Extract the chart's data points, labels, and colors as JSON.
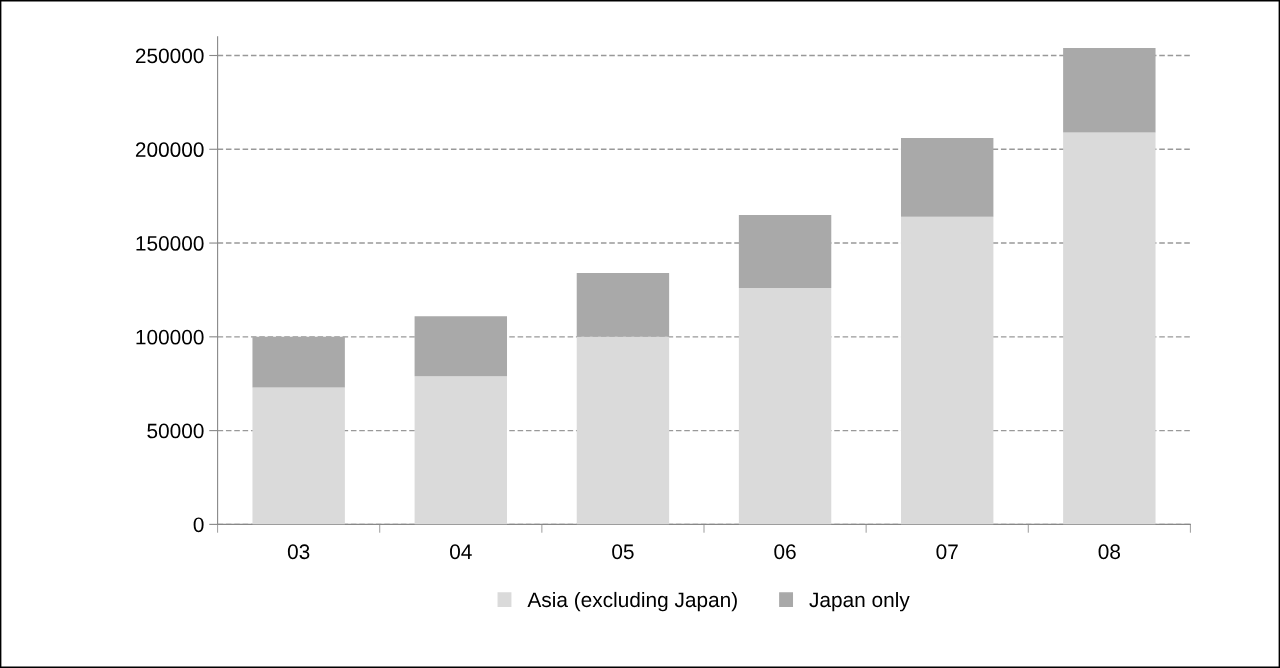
{
  "chart_data": {
    "type": "bar",
    "stacked": true,
    "categories": [
      "03",
      "04",
      "05",
      "06",
      "07",
      "08"
    ],
    "series": [
      {
        "name": "Asia (excluding Japan)",
        "color": "#dadada",
        "values": [
          73000,
          79000,
          100000,
          126000,
          164000,
          209000
        ]
      },
      {
        "name": "Japan only",
        "color": "#a9a9a9",
        "values": [
          27000,
          32000,
          34000,
          39000,
          42000,
          45000
        ]
      }
    ],
    "ylim": [
      0,
      260000
    ],
    "yticks": [
      0,
      50000,
      100000,
      150000,
      200000,
      250000
    ],
    "grid": "y",
    "legend": "bottom"
  }
}
